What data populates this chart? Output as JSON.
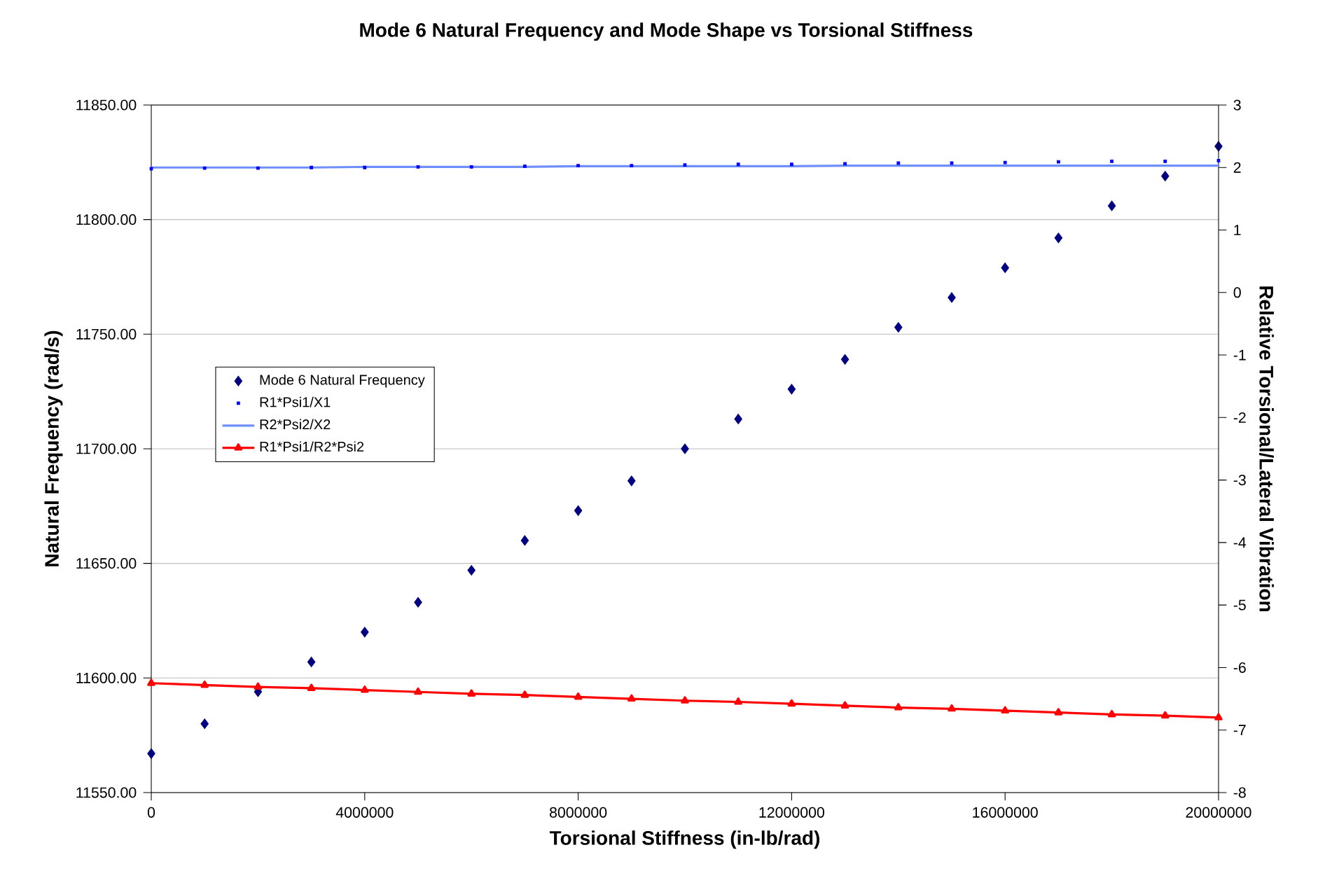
{
  "chart_data": {
    "type": "line",
    "title": "Mode 6 Natural Frequency and Mode Shape vs Torsional Stiffness",
    "xlabel": "Torsional Stiffness (in-lb/rad)",
    "ylabel": "Natural Frequency (rad/s)",
    "y2label": "Relative Torsional/Lateral Vibration",
    "x": [
      0,
      1000000,
      2000000,
      3000000,
      4000000,
      5000000,
      6000000,
      7000000,
      8000000,
      9000000,
      10000000,
      11000000,
      12000000,
      13000000,
      14000000,
      15000000,
      16000000,
      17000000,
      18000000,
      19000000,
      20000000
    ],
    "series": [
      {
        "name": "Mode 6 Natural Frequency",
        "type": "scatter",
        "marker": "diamond",
        "color": "#000080",
        "values": [
          11567,
          11580,
          11594,
          11607,
          11620,
          11633,
          11647,
          11660,
          11673,
          11686,
          11700,
          11713,
          11726,
          11739,
          11753,
          11766,
          11779,
          11792,
          11806,
          11819,
          11832
        ]
      },
      {
        "name": "R1*Psi1/X1",
        "type": "scatter",
        "marker": "square",
        "axis": "y2",
        "color": "#0000ff",
        "values": [
          1.98,
          1.99,
          1.99,
          2.0,
          2.0,
          2.01,
          2.01,
          2.02,
          2.03,
          2.03,
          2.04,
          2.05,
          2.05,
          2.06,
          2.07,
          2.07,
          2.08,
          2.09,
          2.1,
          2.1,
          2.11
        ]
      },
      {
        "name": "R2*Psi2/X2",
        "marker": "none",
        "axis": "y2",
        "color": "#6f8fff",
        "values": [
          2.0,
          2.0,
          2.0,
          2.0,
          2.01,
          2.01,
          2.01,
          2.01,
          2.02,
          2.02,
          2.02,
          2.02,
          2.02,
          2.03,
          2.03,
          2.03,
          2.03,
          2.03,
          2.03,
          2.03,
          2.03
        ]
      },
      {
        "name": "R1*Psi1/R2*Psi2",
        "marker": "triangle",
        "axis": "y2",
        "color": "#ff0000",
        "values": [
          -6.25,
          -6.28,
          -6.31,
          -6.33,
          -6.36,
          -6.39,
          -6.42,
          -6.44,
          -6.47,
          -6.5,
          -6.53,
          -6.55,
          -6.58,
          -6.61,
          -6.64,
          -6.66,
          -6.69,
          -6.72,
          -6.75,
          -6.77,
          -6.8
        ]
      }
    ],
    "xlim": [
      0,
      20000000
    ],
    "xticks": [
      0,
      4000000,
      8000000,
      12000000,
      16000000,
      20000000
    ],
    "ylim": [
      11550,
      11850
    ],
    "yticks": [
      {
        "value": 11550,
        "label": "11550.00"
      },
      {
        "value": 11600,
        "label": "11600.00"
      },
      {
        "value": 11650,
        "label": "11650.00"
      },
      {
        "value": 11700,
        "label": "11700.00"
      },
      {
        "value": 11750,
        "label": "11750.00"
      },
      {
        "value": 11800,
        "label": "11800.00"
      },
      {
        "value": 11850,
        "label": "11850.00"
      }
    ],
    "y2lim": [
      -8,
      3
    ],
    "y2ticks": [
      -8,
      -7,
      -6,
      -5,
      -4,
      -3,
      -2,
      -1,
      0,
      1,
      2,
      3
    ],
    "grid": "y",
    "legend": "left"
  }
}
